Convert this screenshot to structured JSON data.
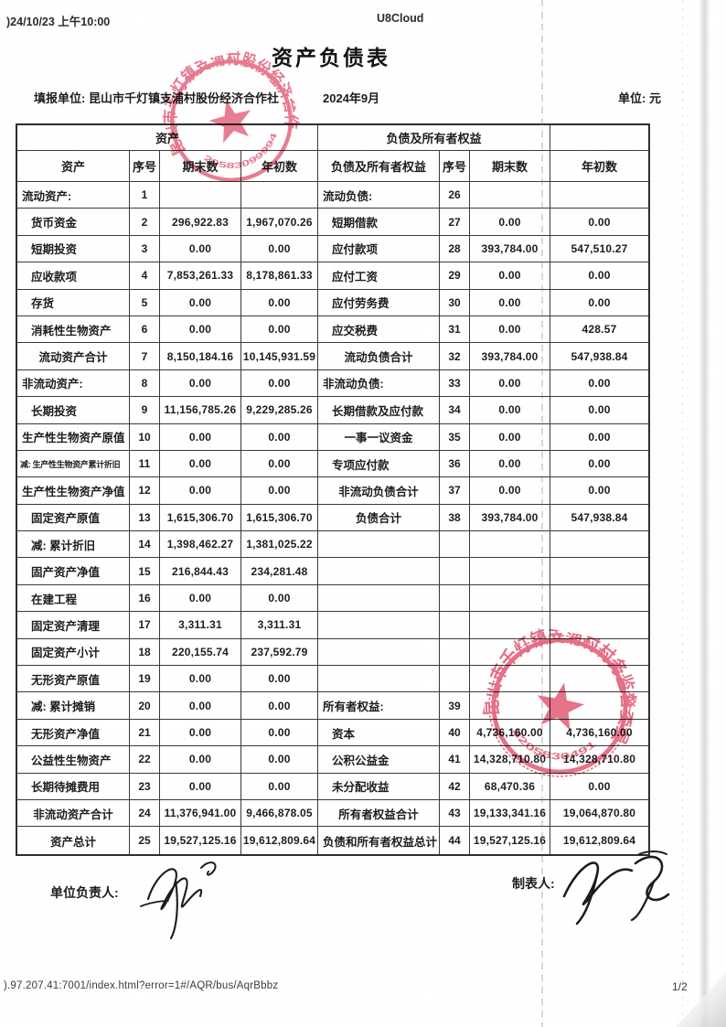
{
  "header": {
    "print_datetime": ")24/10/23 上午10:00",
    "app_name": "U8Cloud",
    "title": "资产负债表",
    "report_unit_label": "填报单位:",
    "report_unit_value": "昆山市千灯镇支浦村股份经济合作社",
    "period": "2024年9月",
    "money_unit_label": "单位:",
    "money_unit_value": "元"
  },
  "table": {
    "group_headers": [
      "资产",
      "负债及所有者权益",
      ""
    ],
    "columns": [
      "资产",
      "序号",
      "期末数",
      "年初数",
      "负债及所有者权益",
      "序号",
      "期末数",
      "年初数"
    ],
    "rows": [
      {
        "a": [
          "流动资产:",
          "1",
          "",
          ""
        ],
        "ai": 0,
        "l": [
          "流动负债:",
          "26",
          "",
          ""
        ],
        "li": 0
      },
      {
        "a": [
          "货币资金",
          "2",
          "296,922.83",
          "1,967,070.26"
        ],
        "ai": 1,
        "l": [
          "短期借款",
          "27",
          "0.00",
          "0.00"
        ],
        "li": 1
      },
      {
        "a": [
          "短期投资",
          "3",
          "0.00",
          "0.00"
        ],
        "ai": 1,
        "l": [
          "应付款项",
          "28",
          "393,784.00",
          "547,510.27"
        ],
        "li": 1
      },
      {
        "a": [
          "应收款项",
          "4",
          "7,853,261.33",
          "8,178,861.33"
        ],
        "ai": 1,
        "l": [
          "应付工资",
          "29",
          "0.00",
          "0.00"
        ],
        "li": 1
      },
      {
        "a": [
          "存货",
          "5",
          "0.00",
          "0.00"
        ],
        "ai": 1,
        "l": [
          "应付劳务费",
          "30",
          "0.00",
          "0.00"
        ],
        "li": 1
      },
      {
        "a": [
          "消耗性生物资产",
          "6",
          "0.00",
          "0.00"
        ],
        "ai": 1,
        "l": [
          "应交税费",
          "31",
          "0.00",
          "428.57"
        ],
        "li": 1
      },
      {
        "a": [
          "流动资产合计",
          "7",
          "8,150,184.16",
          "10,145,931.59"
        ],
        "ai": 2,
        "l": [
          "流动负债合计",
          "32",
          "393,784.00",
          "547,938.84"
        ],
        "li": 2
      },
      {
        "a": [
          "非流动资产:",
          "8",
          "0.00",
          "0.00"
        ],
        "ai": 0,
        "l": [
          "非流动负债:",
          "33",
          "0.00",
          "0.00"
        ],
        "li": 0
      },
      {
        "a": [
          "长期投资",
          "9",
          "11,156,785.26",
          "9,229,285.26"
        ],
        "ai": 1,
        "l": [
          "长期借款及应付款",
          "34",
          "0.00",
          "0.00"
        ],
        "li": 1
      },
      {
        "a": [
          "生产性生物资产原值",
          "10",
          "0.00",
          "0.00"
        ],
        "ai": 0,
        "l": [
          "一事一议资金",
          "35",
          "0.00",
          "0.00"
        ],
        "li": 2
      },
      {
        "a": [
          "减: 生产性生物资产累计折旧",
          "11",
          "0.00",
          "0.00"
        ],
        "ai": 0,
        "as": true,
        "l": [
          "专项应付款",
          "36",
          "0.00",
          "0.00"
        ],
        "li": 1
      },
      {
        "a": [
          "生产性生物资产净值",
          "12",
          "0.00",
          "0.00"
        ],
        "ai": 0,
        "l": [
          "非流动负债合计",
          "37",
          "0.00",
          "0.00"
        ],
        "li": 2
      },
      {
        "a": [
          "固定资产原值",
          "13",
          "1,615,306.70",
          "1,615,306.70"
        ],
        "ai": 1,
        "l": [
          "负债合计",
          "38",
          "393,784.00",
          "547,938.84"
        ],
        "li": 2
      },
      {
        "a": [
          "减: 累计折旧",
          "14",
          "1,398,462.27",
          "1,381,025.22"
        ],
        "ai": 1,
        "l": [
          "",
          "",
          "",
          ""
        ],
        "li": 0
      },
      {
        "a": [
          "固产资产净值",
          "15",
          "216,844.43",
          "234,281.48"
        ],
        "ai": 1,
        "l": [
          "",
          "",
          "",
          ""
        ],
        "li": 0
      },
      {
        "a": [
          "在建工程",
          "16",
          "0.00",
          "0.00"
        ],
        "ai": 1,
        "l": [
          "",
          "",
          "",
          ""
        ],
        "li": 0
      },
      {
        "a": [
          "固定资产清理",
          "17",
          "3,311.31",
          "3,311.31"
        ],
        "ai": 1,
        "l": [
          "",
          "",
          "",
          ""
        ],
        "li": 0
      },
      {
        "a": [
          "固定资产小计",
          "18",
          "220,155.74",
          "237,592.79"
        ],
        "ai": 1,
        "l": [
          "",
          "",
          "",
          ""
        ],
        "li": 0
      },
      {
        "a": [
          "无形资产原值",
          "19",
          "0.00",
          "0.00"
        ],
        "ai": 1,
        "l": [
          "",
          "",
          "",
          ""
        ],
        "li": 0
      },
      {
        "a": [
          "减: 累计摊销",
          "20",
          "0.00",
          "0.00"
        ],
        "ai": 1,
        "l": [
          "所有者权益:",
          "39",
          "",
          ""
        ],
        "li": 0
      },
      {
        "a": [
          "无形资产净值",
          "21",
          "0.00",
          "0.00"
        ],
        "ai": 1,
        "l": [
          "资本",
          "40",
          "4,736,160.00",
          "4,736,160.00"
        ],
        "li": 1
      },
      {
        "a": [
          "公益性生物资产",
          "22",
          "0.00",
          "0.00"
        ],
        "ai": 1,
        "l": [
          "公积公益金",
          "41",
          "14,328,710.80",
          "14,328,710.80"
        ],
        "li": 1
      },
      {
        "a": [
          "长期待摊费用",
          "23",
          "0.00",
          "0.00"
        ],
        "ai": 1,
        "l": [
          "未分配收益",
          "42",
          "68,470.36",
          "0.00"
        ],
        "li": 1
      },
      {
        "a": [
          "非流动资产合计",
          "24",
          "11,376,941.00",
          "9,466,878.05"
        ],
        "ai": 2,
        "l": [
          "所有者权益合计",
          "43",
          "19,133,341.16",
          "19,064,870.80"
        ],
        "li": 2
      },
      {
        "a": [
          "资产总计",
          "25",
          "19,527,125.16",
          "19,612,809.64"
        ],
        "ai": 2,
        "l": [
          "负债和所有者权益总计",
          "44",
          "19,527,125.16",
          "19,612,809.64"
        ],
        "li": 0
      }
    ]
  },
  "stamps": [
    {
      "name": "cooperative-seal",
      "text": "昆山市千灯镇支浦村股份经济合作社",
      "digits": "205830999941",
      "color": "#e0506d"
    },
    {
      "name": "supervision-seal",
      "text": "昆山市千灯镇支浦村村务监督委员会",
      "digits": "320583049174",
      "color": "#e0506d"
    }
  ],
  "signatures": {
    "left_label": "单位负责人:",
    "right_label": "制表人:"
  },
  "footer": {
    "url": ").97.207.41:7001/index.html?error=1#/AQR/bus/AqrBbbz",
    "page_number": "1/2"
  }
}
